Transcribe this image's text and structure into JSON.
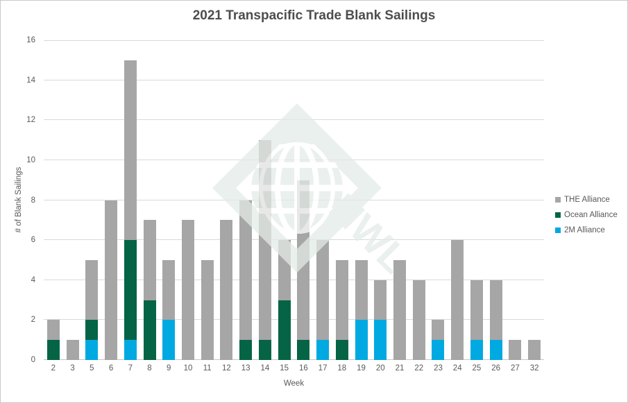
{
  "chart_data": {
    "type": "bar",
    "stacked": true,
    "title": "2021 Transpacific Trade Blank Sailings",
    "xlabel": "Week",
    "ylabel": "# of Blank Sailings",
    "ylim": [
      0,
      16
    ],
    "ytick_step": 2,
    "grid": true,
    "legend_position": "right",
    "categories": [
      "2",
      "3",
      "5",
      "6",
      "7",
      "8",
      "9",
      "10",
      "11",
      "12",
      "13",
      "14",
      "15",
      "16",
      "17",
      "18",
      "19",
      "20",
      "21",
      "22",
      "23",
      "24",
      "25",
      "26",
      "27",
      "32"
    ],
    "series": [
      {
        "name": "2M Alliance",
        "color": "#00A9E1",
        "values": [
          0,
          0,
          1,
          0,
          1,
          0,
          2,
          0,
          0,
          0,
          0,
          0,
          0,
          0,
          1,
          0,
          2,
          2,
          0,
          0,
          1,
          0,
          1,
          1,
          0,
          0
        ]
      },
      {
        "name": "Ocean Alliance",
        "color": "#056445",
        "values": [
          1,
          0,
          1,
          0,
          5,
          3,
          0,
          0,
          0,
          0,
          1,
          1,
          3,
          1,
          0,
          1,
          0,
          0,
          0,
          0,
          0,
          0,
          0,
          0,
          0,
          0
        ]
      },
      {
        "name": "THE Alliance",
        "color": "#A6A6A6",
        "values": [
          1,
          1,
          3,
          8,
          9,
          4,
          3,
          7,
          5,
          7,
          7,
          10,
          3,
          8,
          5,
          4,
          3,
          2,
          5,
          4,
          1,
          6,
          3,
          3,
          1,
          1
        ]
      }
    ],
    "legend": [
      {
        "label": "THE Alliance",
        "color": "#A6A6A6"
      },
      {
        "label": "Ocean Alliance",
        "color": "#056445"
      },
      {
        "label": "2M Alliance",
        "color": "#00A9E1"
      }
    ]
  },
  "watermark": {
    "text": "NWL",
    "color": "#E4EBE7"
  },
  "style": {
    "title_color": "#4D4D4D",
    "axis_text_color": "#595959",
    "gridline_color": "#D9D9D9",
    "baseline_color": "#C6C6C6",
    "border_color": "#C9C9C9"
  }
}
